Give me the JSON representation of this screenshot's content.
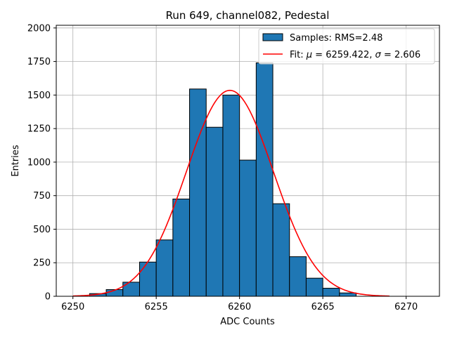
{
  "chart_data": {
    "type": "bar",
    "title": "Run 649, channel082, Pedestal",
    "xlabel": "ADC Counts",
    "ylabel": "Entries",
    "xlim": [
      6249,
      6272
    ],
    "ylim": [
      0,
      2020
    ],
    "xticks": [
      6250,
      6255,
      6260,
      6265,
      6270
    ],
    "yticks": [
      0,
      250,
      500,
      750,
      1000,
      1250,
      1500,
      1750,
      2000
    ],
    "ytick_labels": [
      "0",
      "250",
      "500",
      "750",
      "1000",
      "1250",
      "1500",
      "1750",
      "2000"
    ],
    "grid": true,
    "legend_position": "top-right",
    "histogram": {
      "name": "Samples: RMS=2.48",
      "color": "#1f77b4",
      "edge_color": "#000000",
      "bin_edges": [
        6251,
        6252,
        6253,
        6254,
        6255,
        6256,
        6257,
        6258,
        6259,
        6260,
        6261,
        6262,
        6263,
        6264,
        6265,
        6266,
        6267
      ],
      "counts": [
        20,
        50,
        105,
        255,
        420,
        725,
        1545,
        1260,
        1500,
        1015,
        1740,
        690,
        295,
        135,
        60,
        25
      ]
    },
    "fit": {
      "name": "Fit: μ = 6259.422, σ = 2.606",
      "name_prefix": "Fit: ",
      "mu_symbol": "μ",
      "mu_text": " = 6259.422, ",
      "sigma_symbol": "σ",
      "sigma_text": " = 2.606",
      "color": "#ff0000",
      "mu": 6259.422,
      "sigma": 2.606,
      "amplitude": 1535,
      "x_range": [
        6250,
        6269
      ]
    }
  }
}
